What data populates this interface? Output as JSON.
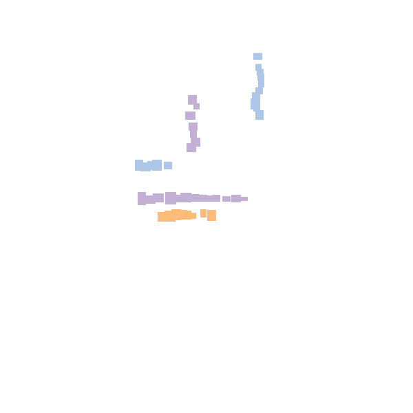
{
  "colors": {
    "background": "#ffffff",
    "blue": "#aec7e8",
    "purple": "#c5b0d5",
    "orange": "#ffbb78"
  },
  "groups": [
    {
      "name": "blue-vertical-trace",
      "color": "blue"
    },
    {
      "name": "purple-vertical-trace",
      "color": "purple"
    },
    {
      "name": "blue-horizontal-trace",
      "color": "blue"
    },
    {
      "name": "purple-horizontal-trace",
      "color": "purple"
    },
    {
      "name": "orange-horizontal-trace",
      "color": "orange"
    }
  ]
}
